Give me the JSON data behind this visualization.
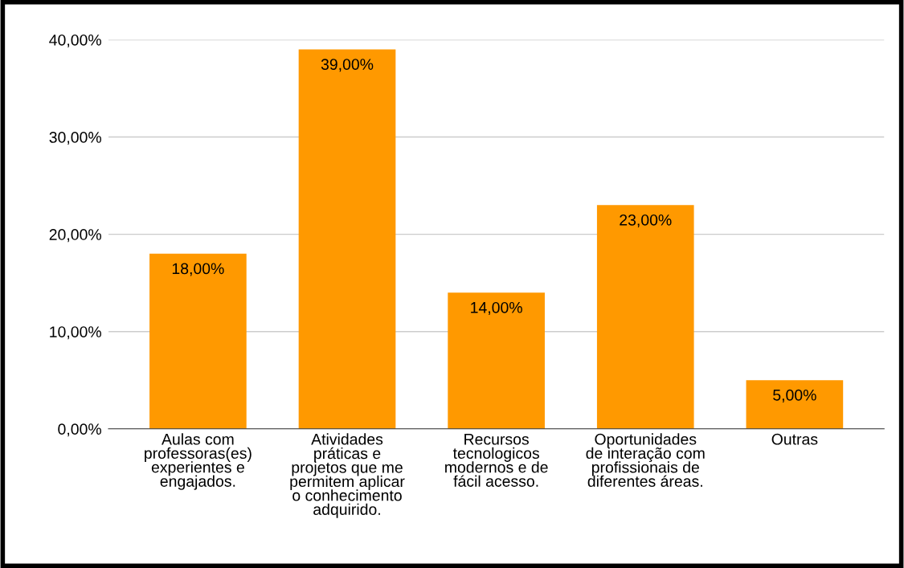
{
  "chart_data": {
    "type": "bar",
    "categories": [
      "Aulas com\nprofessoras(es)\nexperientes e\nengajados.",
      "Atividades\npráticas e\nprojetos que me\npermitem aplicar\no conhecimento\nadquirido.",
      "Recursos\ntecnologicos\nmodernos e de\nfácil acesso.",
      "Oportunidades\nde interação com\nprofissionais de\ndiferentes áreas.",
      "Outras"
    ],
    "values": [
      18,
      39,
      14,
      23,
      5
    ],
    "value_labels": [
      "18,00%",
      "39,00%",
      "14,00%",
      "23,00%",
      "5,00%"
    ],
    "color": "#ff9900",
    "ylim": [
      0,
      40
    ],
    "yticks": [
      {
        "value": 0,
        "label": "0,00%"
      },
      {
        "value": 10,
        "label": "10,00%"
      },
      {
        "value": 20,
        "label": "20,00%"
      },
      {
        "value": 30,
        "label": "30,00%"
      },
      {
        "value": 40,
        "label": "40,00%"
      }
    ],
    "grid": "y"
  }
}
